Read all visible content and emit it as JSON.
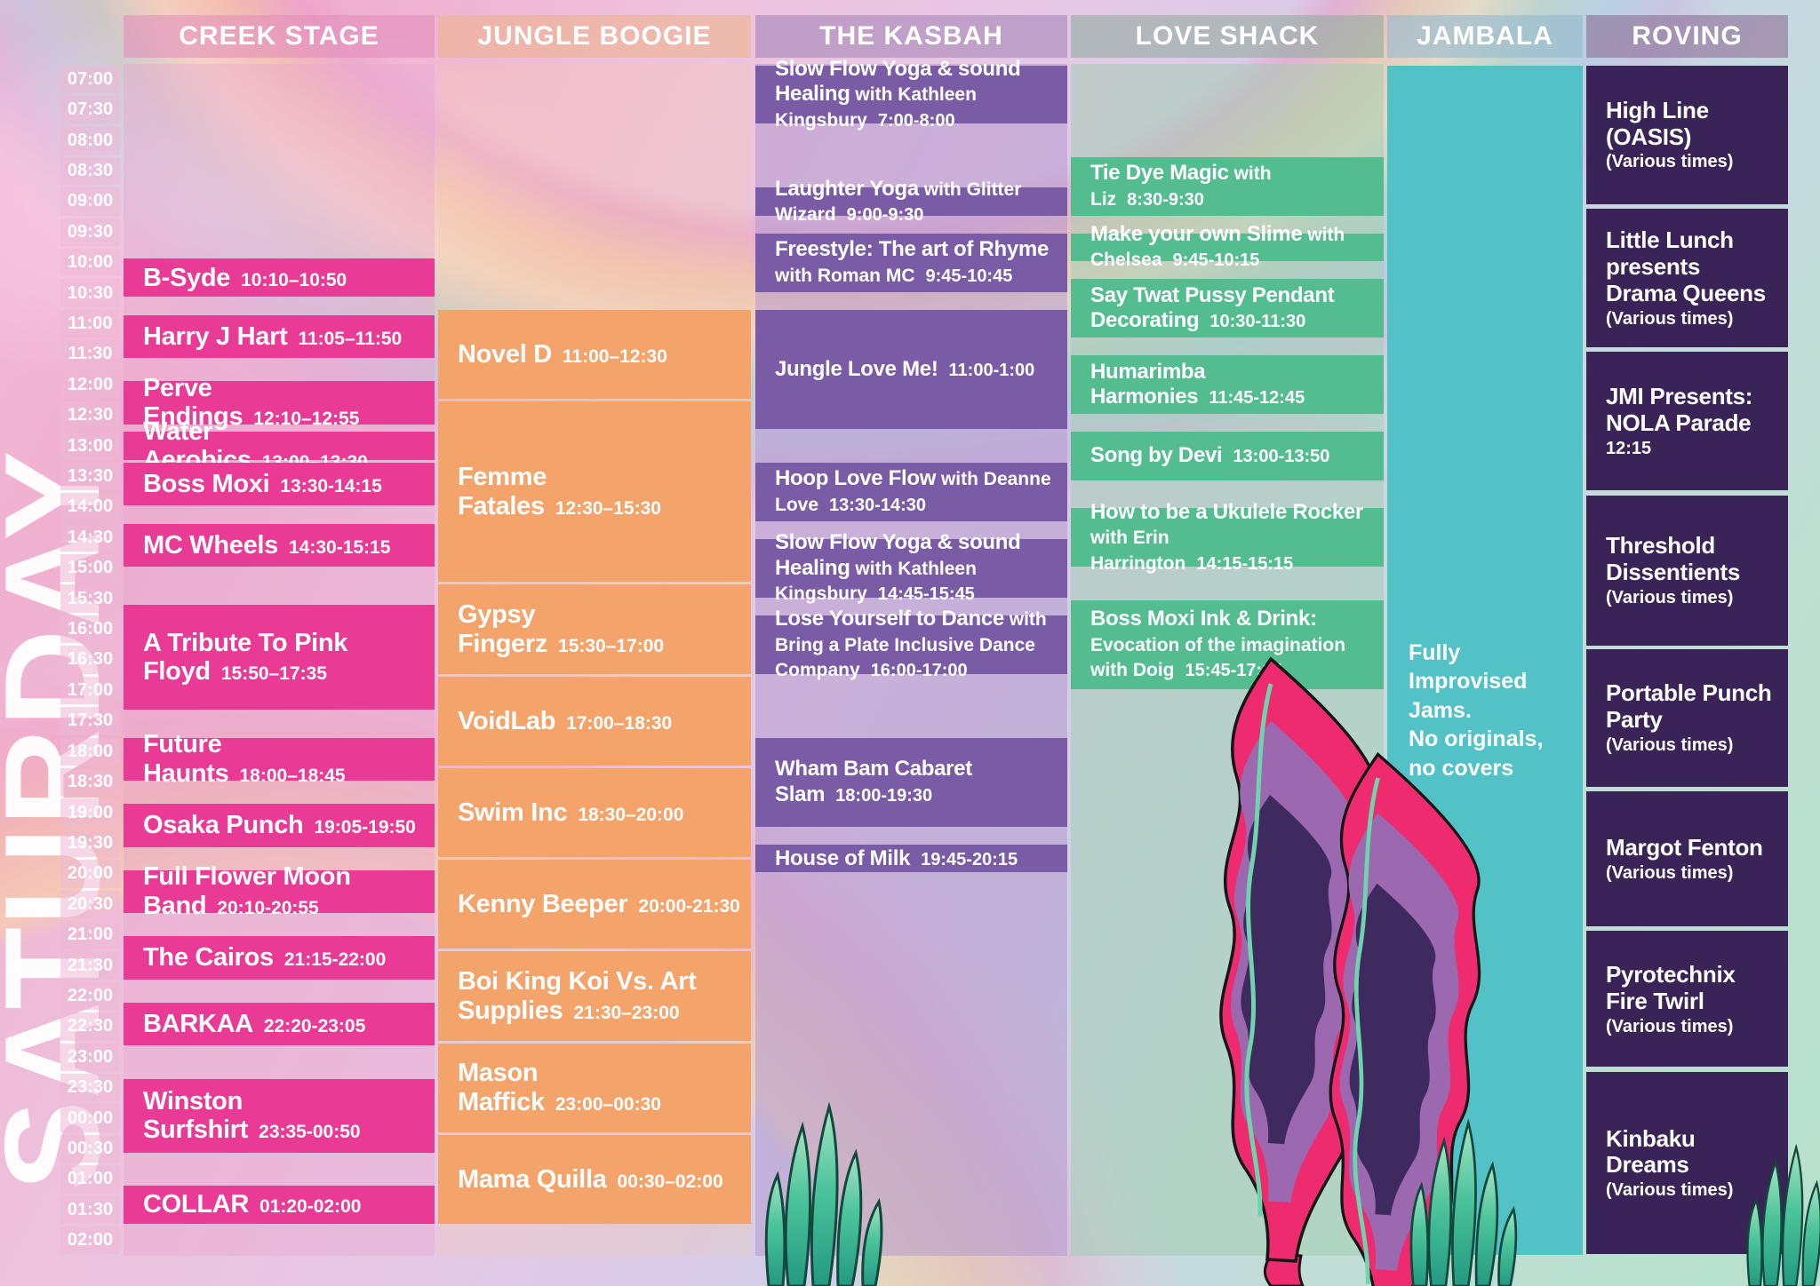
{
  "day": "SATURDAY",
  "time_labels": [
    "07:00",
    "07:30",
    "08:00",
    "08:30",
    "09:00",
    "09:30",
    "10:00",
    "10:30",
    "11:00",
    "11:30",
    "12:00",
    "12:30",
    "13:00",
    "13:30",
    "14:00",
    "14:30",
    "15:00",
    "15:30",
    "16:00",
    "16:30",
    "17:00",
    "17:30",
    "18:00",
    "18:30",
    "19:00",
    "19:30",
    "20:00",
    "20:30",
    "21:00",
    "21:30",
    "22:00",
    "22:30",
    "23:00",
    "23:30",
    "00:00",
    "00:30",
    "01:00",
    "01:30",
    "02:00"
  ],
  "stages": [
    {
      "id": "creek",
      "label": "CREEK STAGE"
    },
    {
      "id": "jungle",
      "label": "JUNGLE BOOGIE"
    },
    {
      "id": "kasbah",
      "label": "THE KASBAH"
    },
    {
      "id": "love",
      "label": "LOVE SHACK"
    },
    {
      "id": "jambala",
      "label": "JAMBALA"
    },
    {
      "id": "roving",
      "label": "ROVING"
    }
  ],
  "events": {
    "creek": [
      {
        "title": "B-Syde",
        "time": "10:10–10:50",
        "start": 190,
        "end": 230
      },
      {
        "title": "Harry J Hart",
        "time": "11:05–11:50",
        "start": 245,
        "end": 290
      },
      {
        "title": "Perve Endings",
        "time": "12:10–12:55",
        "start": 310,
        "end": 355
      },
      {
        "title": "Water Aerobics",
        "time": "13:00–13:30",
        "start": 360,
        "end": 390
      },
      {
        "title": "Boss Moxi",
        "time": "13:30-14:15",
        "start": 390,
        "end": 435
      },
      {
        "title": "MC Wheels",
        "time": "14:30-15:15",
        "start": 450,
        "end": 495
      },
      {
        "title": "A Tribute To Pink Floyd",
        "time": "15:50–17:35",
        "start": 530,
        "end": 635
      },
      {
        "title": "Future Haunts",
        "time": "18:00–18:45",
        "start": 660,
        "end": 705
      },
      {
        "title": "Osaka Punch",
        "time": "19:05-19:50",
        "start": 725,
        "end": 770
      },
      {
        "title": "Full Flower Moon Band",
        "time": "20:10-20:55",
        "start": 790,
        "end": 835
      },
      {
        "title": "The Cairos",
        "time": "21:15-22:00",
        "start": 855,
        "end": 900
      },
      {
        "title": "BARKAA",
        "time": "22:20-23:05",
        "start": 920,
        "end": 965
      },
      {
        "title": "Winston Surfshirt",
        "time": "23:35-00:50",
        "start": 995,
        "end": 1070
      },
      {
        "title": "COLLAR",
        "time": "01:20-02:00",
        "start": 1100,
        "end": 1140
      }
    ],
    "jungle": [
      {
        "title": "Novel D",
        "time": "11:00–12:30",
        "start": 240,
        "end": 330
      },
      {
        "title": "Femme Fatales",
        "time": "12:30–15:30",
        "start": 330,
        "end": 510
      },
      {
        "title": "Gypsy Fingerz",
        "time": "15:30–17:00",
        "start": 510,
        "end": 600
      },
      {
        "title": "VoidLab",
        "time": "17:00–18:30",
        "start": 600,
        "end": 690
      },
      {
        "title": "Swim Inc",
        "time": "18:30–20:00",
        "start": 690,
        "end": 780
      },
      {
        "title": "Kenny Beeper",
        "time": "20:00-21:30",
        "start": 780,
        "end": 870
      },
      {
        "title": "Boi King Koi Vs. Art Supplies",
        "time": "21:30–23:00",
        "start": 870,
        "end": 960
      },
      {
        "title": "Mason Maffick",
        "time": "23:00–00:30",
        "start": 960,
        "end": 1050
      },
      {
        "title": "Mama Quilla",
        "time": "00:30–02:00",
        "start": 1050,
        "end": 1140
      }
    ],
    "kasbah": [
      {
        "title": "Slow Flow Yoga & sound Healing",
        "subtitle": "with Kathleen Kingsbury",
        "time": "7:00-8:00",
        "start": 0,
        "end": 60
      },
      {
        "title": "Laughter Yoga",
        "subtitle": "with Glitter Wizard",
        "time": "9:00-9:30",
        "start": 120,
        "end": 150
      },
      {
        "title": "Freestyle: The art of Rhyme",
        "subtitle": "with Roman MC",
        "time": "9:45-10:45",
        "start": 165,
        "end": 225
      },
      {
        "title": "Jungle Love Me!",
        "time": "11:00-1:00",
        "start": 240,
        "end": 360
      },
      {
        "title": "Hoop Love Flow",
        "subtitle": "with Deanne Love",
        "time": "13:30-14:30",
        "start": 390,
        "end": 450
      },
      {
        "title": "Slow Flow Yoga & sound Healing",
        "subtitle": "with Kathleen Kingsbury",
        "time": "14:45-15:45",
        "start": 465,
        "end": 525
      },
      {
        "title": "Lose Yourself to Dance",
        "subtitle": "with Bring a Plate Inclusive Dance Company",
        "time": "16:00-17:00",
        "start": 540,
        "end": 600
      },
      {
        "title": "Wham Bam Cabaret Slam",
        "time": "18:00-19:30",
        "start": 660,
        "end": 750
      },
      {
        "title": "House of Milk",
        "time": "19:45-20:15",
        "start": 765,
        "end": 795
      }
    ],
    "love": [
      {
        "title": "Tie Dye Magic",
        "subtitle": "with Liz",
        "time": "8:30-9:30",
        "start": 90,
        "end": 150
      },
      {
        "title": "Make your own Slime",
        "subtitle": "with Chelsea",
        "time": "9:45-10:15",
        "start": 165,
        "end": 195
      },
      {
        "title": "Say Twat Pussy Pendant Decorating",
        "time": "10:30-11:30",
        "start": 210,
        "end": 270
      },
      {
        "title": "Humarimba Harmonies",
        "time": "11:45-12:45",
        "start": 285,
        "end": 345
      },
      {
        "title": "Song by Devi",
        "time": "13:00-13:50",
        "start": 360,
        "end": 410
      },
      {
        "title": "How to be a Ukulele Rocker",
        "subtitle": "with Erin Harrington",
        "time": "14:15-15:15",
        "start": 435,
        "end": 495
      },
      {
        "title": "Boss Moxi Ink & Drink:",
        "subtitle": "Evocation of the imagination with Doig",
        "time": "15:45-17:15",
        "start": 525,
        "end": 615
      }
    ],
    "roving": [
      {
        "lines": [
          "High Line (OASIS)"
        ],
        "note": "(Various times)",
        "start": 0,
        "end": 139
      },
      {
        "lines": [
          "Little Lunch presents",
          "Drama Queens"
        ],
        "note": "(Various times)",
        "start": 141,
        "end": 279
      },
      {
        "lines": [
          "JMI Presents:",
          "NOLA Parade"
        ],
        "note": "12:15",
        "start": 281,
        "end": 420
      },
      {
        "lines": [
          "Threshold Dissentients"
        ],
        "note": "(Various times)",
        "start": 422,
        "end": 572
      },
      {
        "lines": [
          "Portable Punch Party"
        ],
        "note": "(Various times)",
        "start": 573,
        "end": 711
      },
      {
        "lines": [
          "Margot Fenton"
        ],
        "note": "(Various times)",
        "start": 713,
        "end": 848
      },
      {
        "lines": [
          "Pyrotechnix Fire Twirl"
        ],
        "note": "(Various times)",
        "start": 850,
        "end": 986
      },
      {
        "lines": [
          "Kinbaku Dreams"
        ],
        "note": "(Various times)",
        "start": 988,
        "end": 1170
      }
    ]
  },
  "jambala": {
    "note_lines": [
      "Fully Improvised Jams.",
      "No originals, no covers"
    ],
    "start": 0,
    "end": 1170
  },
  "colors": {
    "creek_block": "#E93A95",
    "jungle_block": "#F4A46B",
    "kasbah_block": "#7A5CA6",
    "love_block": "#54BD8F",
    "jambala_block": "#53C2C6",
    "roving_block": "#3A2356",
    "creek_header": "rgba(226,142,186,0.58)",
    "jungle_header": "rgba(238,178,130,0.52)",
    "kasbah_header": "rgba(158,128,178,0.55)",
    "love_header": "rgba(148,172,162,0.62)",
    "jambala_header": "rgba(148,186,206,0.62)",
    "roving_header": "rgba(142,112,152,0.62)",
    "creek_backdrop": "rgba(232,166,206,0.40)",
    "jungle_backdrop": "rgba(246,200,156,0.22)",
    "kasbah_backdrop": "rgba(178,152,206,0.52)",
    "love_backdrop": "rgba(162,206,176,0.52)",
    "time_cell": "rgba(236,184,214,0.55)"
  }
}
